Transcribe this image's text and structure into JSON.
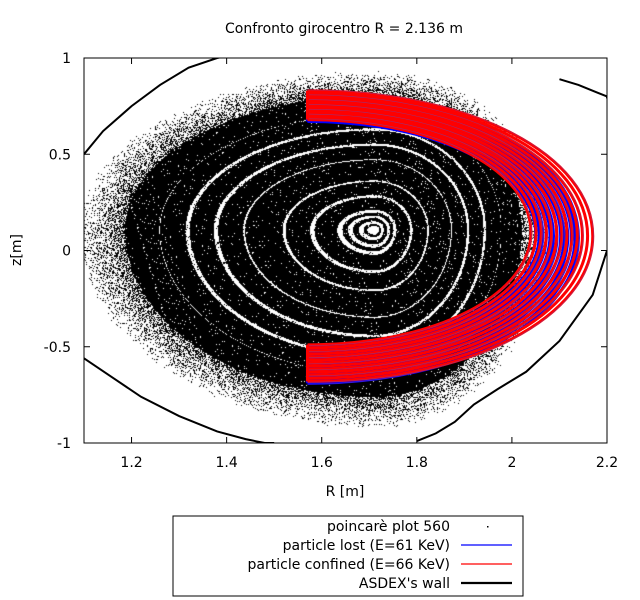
{
  "chart_data": {
    "type": "line",
    "title": "Confronto girocentro R = 2.136 m",
    "xlabel": "R [m]",
    "ylabel": "z[m]",
    "xlim": [
      1.1,
      2.2
    ],
    "ylim": [
      -1,
      1
    ],
    "x_ticks": [
      1.2,
      1.4,
      1.6,
      1.8,
      2,
      2.2
    ],
    "x_tick_labels": [
      "1.2",
      "1.4",
      "1.6",
      "1.8",
      "2",
      "2.2"
    ],
    "y_ticks": [
      -1,
      -0.5,
      0,
      0.5,
      1
    ],
    "y_tick_labels": [
      "-1",
      "-0.5",
      "0",
      "0.5",
      "1"
    ],
    "grid": false,
    "legend_position": "bottom-outside",
    "colors": {
      "lost": "#0000ff",
      "confined": "#ff0000",
      "wall": "#000000",
      "poincare": "#000000"
    },
    "series": [
      {
        "name": "poincarè plot 560",
        "style": "points",
        "magnetic_axis": [
          1.71,
          0.11
        ],
        "outer_surface": {
          "r_min": 1.1,
          "r_max": 2.07,
          "z_min": -0.9,
          "z_max": 0.92
        }
      },
      {
        "name": "particle lost (E=61 KeV)",
        "style": "line",
        "orbit_band": {
          "r_start": 1.57,
          "r_tip_inner": 2.05,
          "r_tip_outer": 2.14,
          "z_top_outer": 0.82,
          "z_top_inner": 0.67,
          "z_bottom_outer": -0.69,
          "z_bottom_inner": -0.5
        }
      },
      {
        "name": "particle confined (E=66 KeV)",
        "style": "line",
        "orbit_band": {
          "r_start": 1.57,
          "r_tip_inner": 2.04,
          "r_tip_outer": 2.17,
          "z_top_outer": 0.83,
          "z_top_inner": 0.68,
          "z_bottom_outer": -0.68,
          "z_bottom_inner": -0.49
        }
      },
      {
        "name": "ASDEX's wall",
        "style": "line",
        "segments": [
          {
            "x": [
              1.1,
              1.14,
              1.2,
              1.26,
              1.32,
              1.38,
              1.4
            ],
            "y": [
              0.5,
              0.62,
              0.75,
              0.86,
              0.95,
              1.0,
              1.01
            ]
          },
          {
            "x": [
              1.1,
              1.16,
              1.22,
              1.3,
              1.38,
              1.44,
              1.48,
              1.5
            ],
            "y": [
              -0.56,
              -0.66,
              -0.76,
              -0.86,
              -0.94,
              -0.98,
              -1.0,
              -1.0
            ]
          },
          {
            "x": [
              2.1,
              2.14,
              2.18,
              2.2,
              2.2
            ],
            "y": [
              0.89,
              0.86,
              0.82,
              0.8,
              0.79
            ]
          },
          {
            "x": [
              2.2,
              2.17,
              2.1,
              2.03,
              1.97,
              1.92,
              1.88,
              1.84,
              1.8
            ],
            "y": [
              0.0,
              -0.23,
              -0.47,
              -0.63,
              -0.72,
              -0.8,
              -0.89,
              -0.95,
              -0.99
            ]
          }
        ]
      }
    ]
  }
}
